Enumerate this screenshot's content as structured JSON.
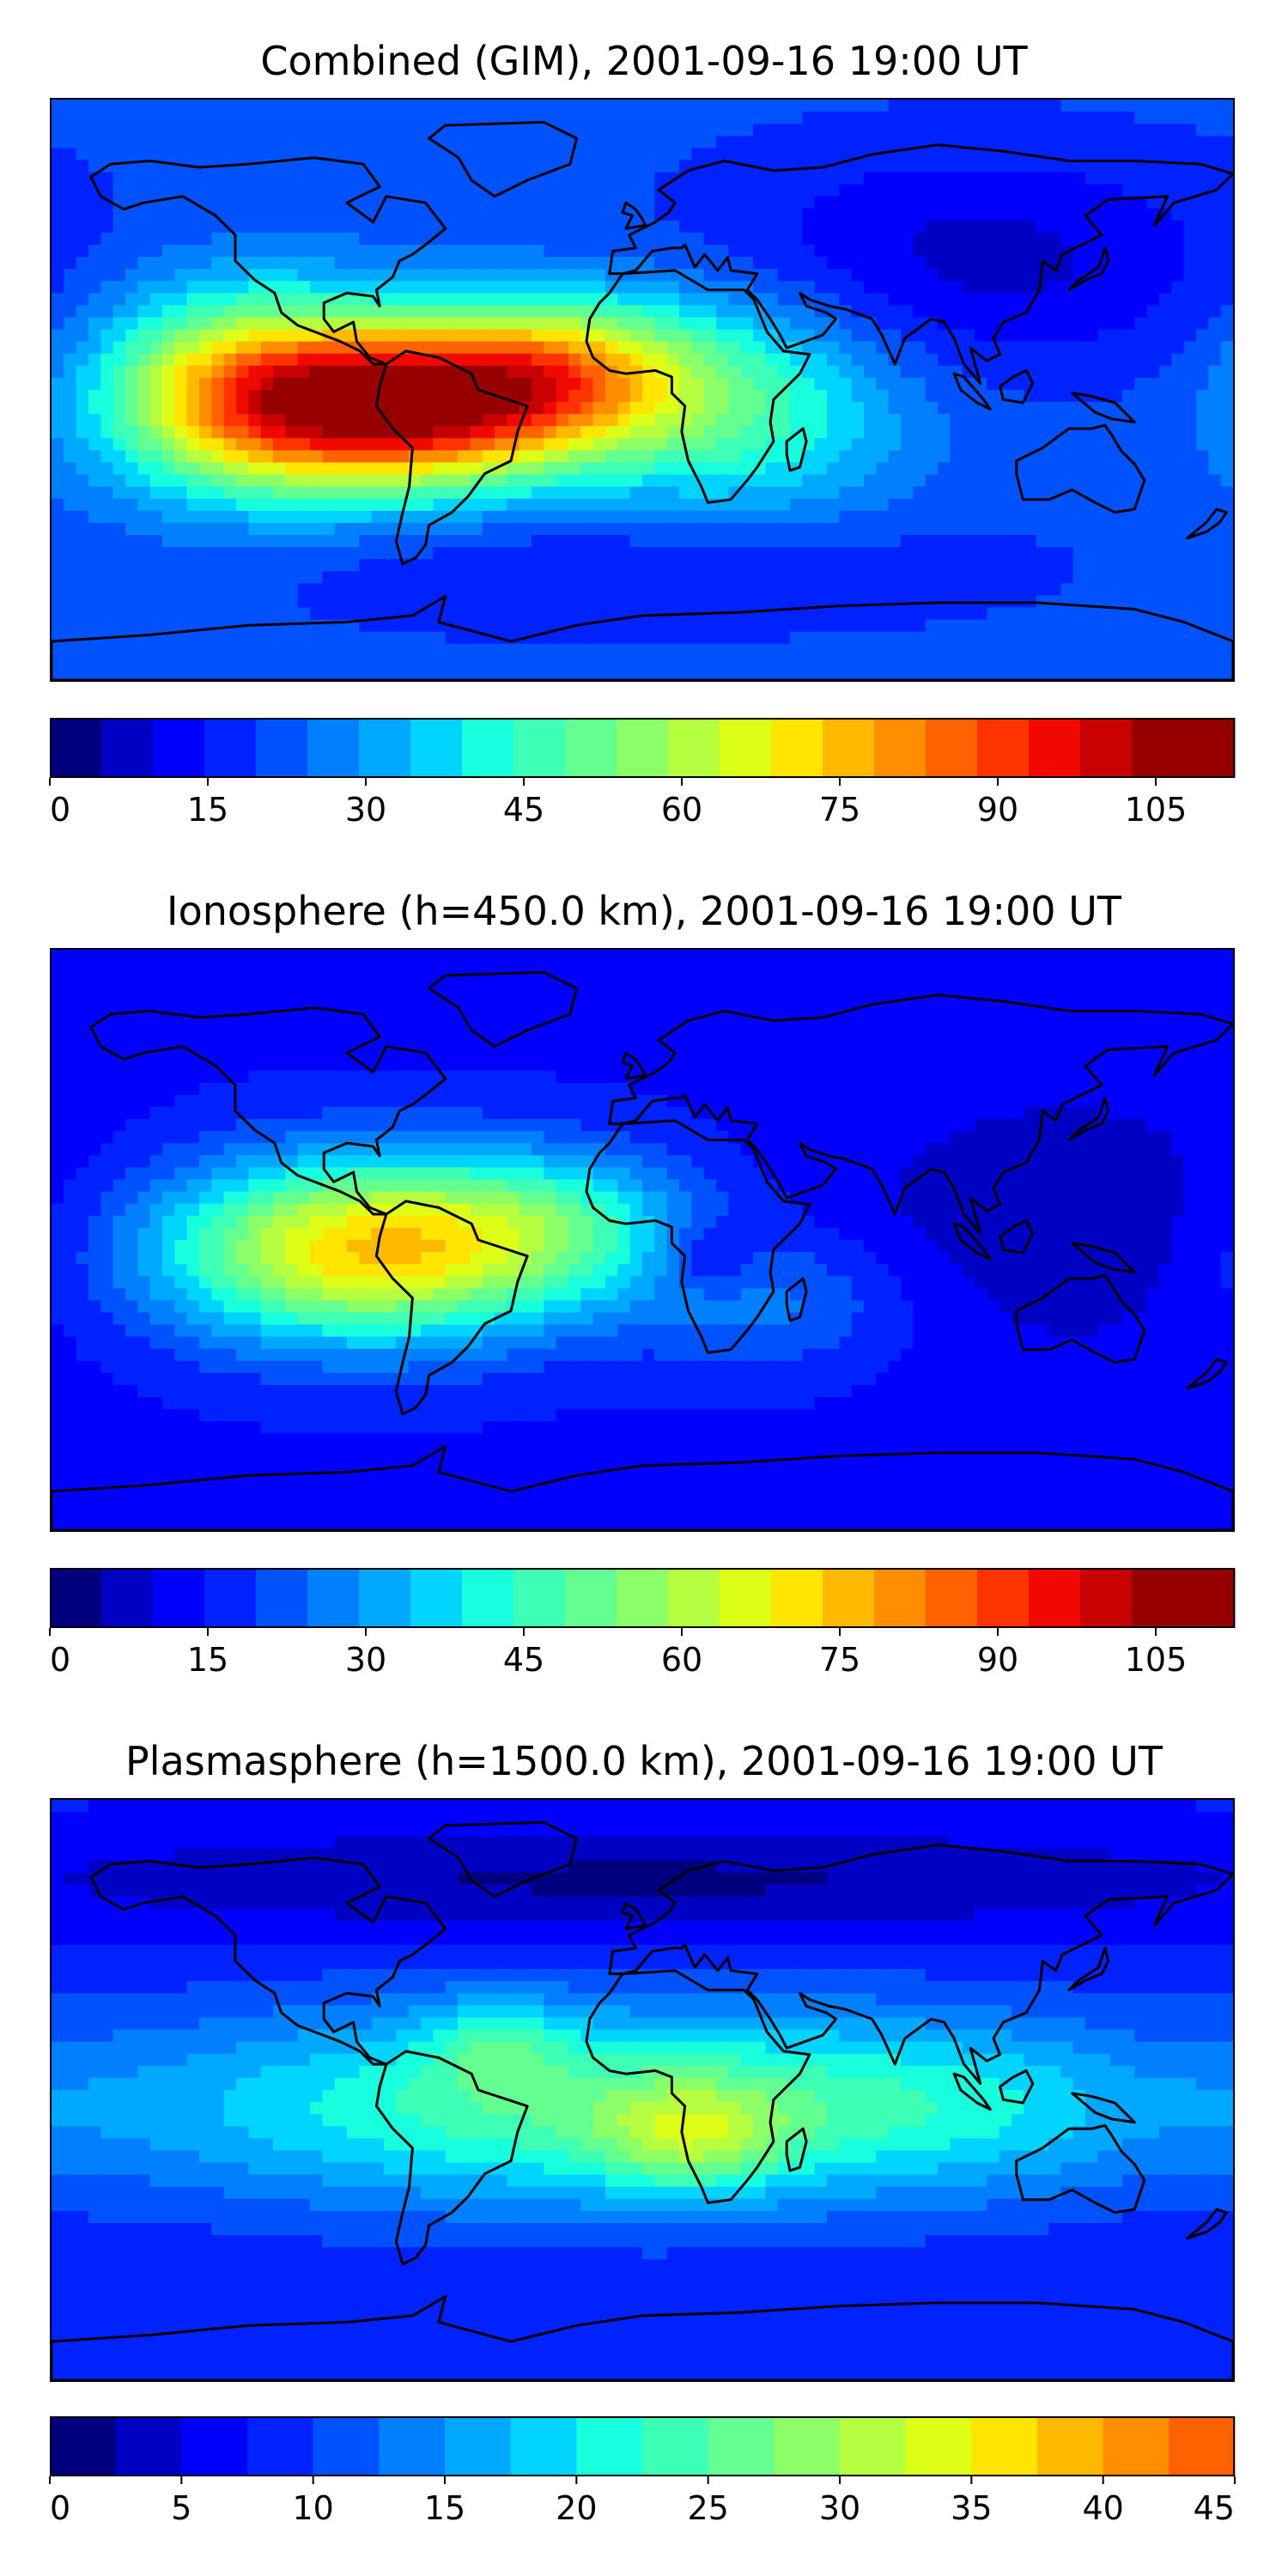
{
  "colors": {
    "jet": [
      "#00007f",
      "#0000c4",
      "#0000ff",
      "#0022ff",
      "#0052ff",
      "#0080ff",
      "#00a8ff",
      "#00d4ff",
      "#18ffde",
      "#3dffb6",
      "#63ff90",
      "#8cff68",
      "#b6ff40",
      "#deff18",
      "#ffe500",
      "#ffb900",
      "#ff8d00",
      "#ff6200",
      "#ff3300",
      "#f10800",
      "#c70000",
      "#960000"
    ],
    "land": "#000000"
  },
  "panels": [
    {
      "title": "Combined (GIM), 2001-09-16 19:00 UT",
      "colorbar": {
        "min": 0,
        "max": 112.5,
        "step": 5,
        "ticks": [
          "0",
          "15",
          "30",
          "45",
          "60",
          "75",
          "90",
          "105"
        ]
      },
      "field": {
        "base": 22,
        "hotspots": [
          {
            "lon": -75,
            "lat": -5,
            "amp": 80,
            "slon": 38,
            "slat": 18
          },
          {
            "lon": -25,
            "lat": 5,
            "amp": 40,
            "slon": 30,
            "slat": 16
          },
          {
            "lon": -125,
            "lat": 0,
            "amp": 40,
            "slon": 30,
            "slat": 22
          },
          {
            "lon": 30,
            "lat": -5,
            "amp": 25,
            "slon": 35,
            "slat": 25
          },
          {
            "lon": 100,
            "lat": 40,
            "amp": -14,
            "slon": 60,
            "slat": 25
          },
          {
            "lon": 0,
            "lat": -55,
            "amp": -8,
            "slon": 80,
            "slat": 15
          }
        ]
      }
    },
    {
      "title": "Ionosphere  (h=450.0 km), 2001-09-16 19:00 UT",
      "colorbar": {
        "min": 0,
        "max": 112.5,
        "step": 5,
        "ticks": [
          "0",
          "15",
          "30",
          "45",
          "60",
          "75",
          "90",
          "105"
        ]
      },
      "field": {
        "base": 14,
        "hotspots": [
          {
            "lon": -85,
            "lat": -3,
            "amp": 60,
            "slon": 45,
            "slat": 20
          },
          {
            "lon": -25,
            "lat": 5,
            "amp": 20,
            "slon": 30,
            "slat": 16
          },
          {
            "lon": 20,
            "lat": -5,
            "amp": -12,
            "slon": 10,
            "slat": 8
          },
          {
            "lon": 130,
            "lat": 5,
            "amp": -8,
            "slon": 50,
            "slat": 30
          },
          {
            "lon": 40,
            "lat": -20,
            "amp": 12,
            "slon": 30,
            "slat": 15
          }
        ]
      }
    },
    {
      "title": "Plasmasphere (h=1500.0 km), 2001-09-16 19:00 UT",
      "colorbar": {
        "min": 0,
        "max": 45,
        "step": 2.5,
        "ticks": [
          "0",
          "5",
          "10",
          "15",
          "20",
          "25",
          "30",
          "35",
          "40",
          "45"
        ]
      },
      "field": {
        "base": 8,
        "hotspots": [
          {
            "lon": -30,
            "lat": -5,
            "amp": 16,
            "slon": 90,
            "slat": 22
          },
          {
            "lon": 15,
            "lat": -15,
            "amp": 10,
            "slon": 20,
            "slat": 12
          },
          {
            "lon": -45,
            "lat": 15,
            "amp": 7,
            "slon": 15,
            "slat": 10
          },
          {
            "lon": 100,
            "lat": -5,
            "amp": 8,
            "slon": 60,
            "slat": 20
          },
          {
            "lon": 0,
            "lat": 65,
            "amp": -6,
            "slon": 150,
            "slat": 12
          }
        ]
      }
    }
  ]
}
